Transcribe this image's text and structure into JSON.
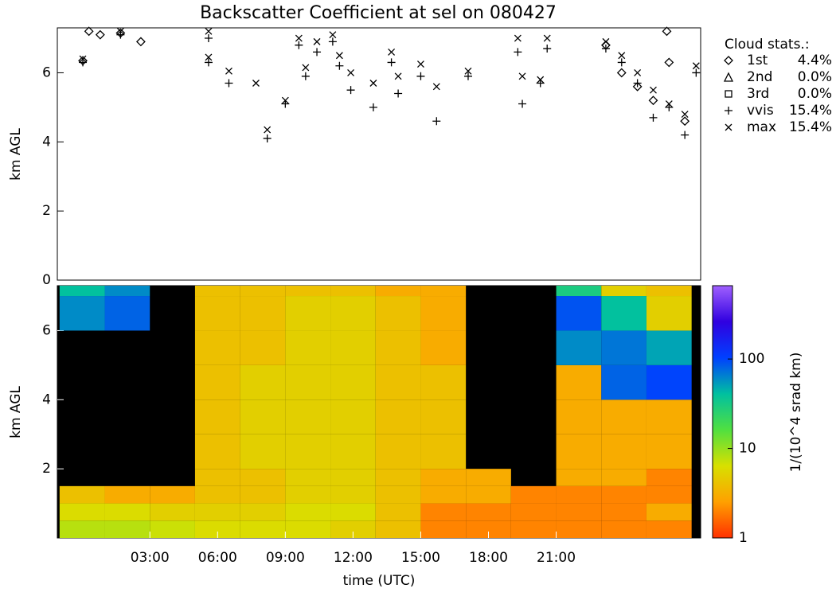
{
  "chart_data": [
    {
      "type": "scatter",
      "title": "Backscatter Coefficient at sel on 080427",
      "y_label": "km AGL",
      "xlim": [
        -1.1,
        27.4
      ],
      "ylim": [
        0,
        7.3
      ],
      "yticks": [
        0,
        2,
        4,
        6
      ],
      "legend_title": "Cloud stats.:",
      "legend": "right",
      "series": [
        {
          "name": "1st",
          "stat": "4.4%",
          "marker": "diamond",
          "color": "#000000",
          "x": [
            0.03,
            0.3,
            0.8,
            1.7,
            2.6,
            23.2,
            23.9,
            24.6,
            25.3,
            26.0,
            26.7,
            25.9
          ],
          "values": [
            6.35,
            7.2,
            7.1,
            7.15,
            6.9,
            6.8,
            6.0,
            5.6,
            5.2,
            6.3,
            4.6,
            7.2
          ]
        },
        {
          "name": "2nd",
          "stat": "0.0%",
          "marker": "triangle",
          "color": "#000000",
          "x": [],
          "values": []
        },
        {
          "name": "3rd",
          "stat": "0.0%",
          "marker": "square",
          "color": "#000000",
          "x": [],
          "values": []
        },
        {
          "name": "vvis",
          "stat": "15.4%",
          "marker": "plus",
          "color": "#000000",
          "x": [
            0.03,
            1.7,
            5.6,
            5.6,
            6.5,
            8.2,
            9.0,
            9.6,
            9.9,
            10.4,
            11.1,
            11.4,
            11.9,
            12.9,
            13.7,
            14.0,
            15.0,
            15.7,
            17.1,
            19.3,
            19.5,
            20.3,
            20.6,
            23.2,
            23.9,
            24.6,
            25.3,
            26.0,
            26.7,
            27.2
          ],
          "values": [
            6.3,
            7.1,
            6.3,
            7.0,
            5.7,
            4.1,
            5.1,
            6.8,
            5.9,
            6.6,
            6.9,
            6.2,
            5.5,
            5.0,
            6.3,
            5.4,
            5.9,
            4.6,
            5.9,
            6.6,
            5.1,
            5.7,
            6.7,
            6.7,
            6.3,
            5.7,
            4.7,
            5.0,
            4.2,
            6.0
          ]
        },
        {
          "name": "max",
          "stat": "15.4%",
          "marker": "x",
          "color": "#000000",
          "x": [
            0.03,
            1.7,
            5.6,
            5.6,
            6.5,
            7.7,
            8.2,
            9.0,
            9.6,
            9.9,
            10.4,
            11.1,
            11.4,
            11.9,
            12.9,
            13.7,
            14.0,
            15.0,
            15.7,
            17.1,
            19.3,
            19.5,
            20.3,
            20.6,
            23.2,
            23.9,
            24.6,
            25.3,
            26.0,
            26.7,
            27.2
          ],
          "values": [
            6.4,
            7.2,
            7.2,
            6.45,
            6.05,
            5.7,
            4.35,
            5.2,
            7.0,
            6.15,
            6.9,
            7.1,
            6.5,
            6.0,
            5.7,
            6.6,
            5.9,
            6.25,
            5.6,
            6.05,
            7.0,
            5.9,
            5.8,
            7.0,
            6.9,
            6.5,
            6.0,
            5.5,
            5.1,
            4.8,
            6.2
          ]
        }
      ]
    },
    {
      "type": "heatmap",
      "y_label": "km AGL",
      "x_label": "time (UTC)",
      "xlim": [
        -1.1,
        27.4
      ],
      "ylim": [
        0,
        7.3
      ],
      "yticks": [
        2,
        4,
        6
      ],
      "xticks": [
        {
          "value": 3,
          "label": "03:00"
        },
        {
          "value": 6,
          "label": "06:00"
        },
        {
          "value": 9,
          "label": "09:00"
        },
        {
          "value": 12,
          "label": "12:00"
        },
        {
          "value": 15,
          "label": "15:00"
        },
        {
          "value": 18,
          "label": "18:00"
        },
        {
          "value": 21,
          "label": "21:00"
        }
      ],
      "x_bins": [
        -1,
        1,
        3,
        5,
        7,
        9,
        11,
        13,
        15,
        17,
        19,
        21,
        23,
        25,
        27
      ],
      "y_bins": [
        0,
        0.5,
        1,
        1.5,
        2,
        3,
        4,
        5,
        6,
        7,
        7.3
      ],
      "values": [
        [
          8,
          8,
          7,
          6,
          6,
          6,
          5,
          4,
          2,
          2,
          2,
          2,
          2,
          2
        ],
        [
          6,
          6,
          5,
          5,
          5,
          6,
          6,
          4,
          2,
          2,
          2,
          2,
          2,
          3
        ],
        [
          4,
          3,
          3,
          4,
          4,
          5,
          5,
          4,
          3,
          3,
          2,
          2,
          2,
          2
        ],
        [
          null,
          null,
          null,
          4,
          4,
          5,
          5,
          4,
          3,
          3,
          null,
          3,
          3,
          2
        ],
        [
          null,
          null,
          null,
          4,
          5,
          5,
          5,
          4,
          4,
          null,
          null,
          3,
          3,
          3
        ],
        [
          null,
          null,
          null,
          4,
          5,
          5,
          5,
          4,
          4,
          null,
          null,
          3,
          3,
          3
        ],
        [
          null,
          null,
          null,
          4,
          5,
          5,
          5,
          4,
          4,
          null,
          null,
          3,
          80,
          100
        ],
        [
          null,
          null,
          null,
          4,
          4,
          5,
          5,
          4,
          3,
          null,
          null,
          60,
          70,
          50
        ],
        [
          60,
          80,
          null,
          4,
          4,
          5,
          5,
          4,
          3,
          null,
          null,
          90,
          40,
          5
        ],
        [
          40,
          60,
          null,
          4,
          4,
          4,
          4,
          3,
          3,
          null,
          null,
          30,
          5,
          4
        ]
      ],
      "colorbar_label": "1/(10^4 srad km)",
      "clim": [
        1,
        660
      ],
      "cticks": [
        1,
        10,
        100
      ],
      "log_color": true,
      "colormap": [
        "#ff3000",
        "#ffa000",
        "#d8e000",
        "#50e040",
        "#00c0a0",
        "#0040ff",
        "#3000e0",
        "#a060ff"
      ]
    }
  ]
}
